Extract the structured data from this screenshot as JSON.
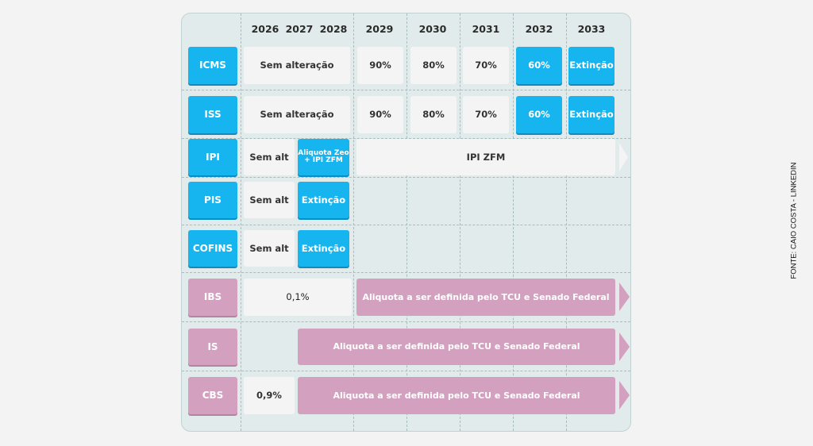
{
  "years": [
    "2026",
    "2027",
    "2028",
    "2029",
    "2030",
    "2031",
    "2032",
    "2033"
  ],
  "rows": {
    "icms": {
      "label": "ICMS",
      "unchanged": "Sem alteração",
      "y2029": "90%",
      "y2030": "80%",
      "y2031": "70%",
      "y2032": "60%",
      "y2033": "Extinção"
    },
    "iss": {
      "label": "ISS",
      "unchanged": "Sem alteração",
      "y2029": "90%",
      "y2030": "80%",
      "y2031": "70%",
      "y2032": "60%",
      "y2033": "Extinção"
    },
    "ipi": {
      "label": "IPI",
      "y2026": "Sem alt",
      "y2027_line1": "Aliquota Zeo",
      "y2027_line2": "+ IPI ZFM",
      "later": "IPI ZFM"
    },
    "pis": {
      "label": "PIS",
      "y2026": "Sem alt",
      "y2027": "Extinção"
    },
    "cofins": {
      "label": "COFINS",
      "y2026": "Sem alt",
      "y2027": "Extinção"
    },
    "ibs": {
      "label": "IBS",
      "initial": "0,1%",
      "later": "Aliquota a ser definida pelo TCU e Senado Federal"
    },
    "is": {
      "label": "IS",
      "later": "Aliquota a ser definida pelo TCU e Senado Federal"
    },
    "cbs": {
      "label": "CBS",
      "initial": "0,9%",
      "later": "Aliquota a ser definida pelo TCU e Senado Federal"
    }
  },
  "credit": "FONTE: CAIO COSTA - LINKEDIN",
  "colors": {
    "accent_blue": "#17b5ef",
    "accent_pink": "#d3a1bf",
    "panel_bg": "#e2ebeb",
    "cell_light": "#f4f4f4"
  }
}
